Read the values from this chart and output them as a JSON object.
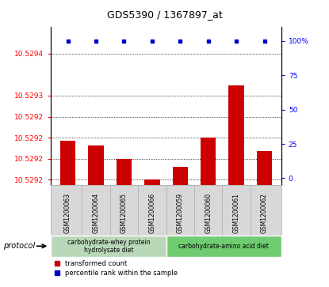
{
  "title": "GDS5390 / 1367897_at",
  "samples": [
    "GSM1200063",
    "GSM1200064",
    "GSM1200065",
    "GSM1200066",
    "GSM1200059",
    "GSM1200060",
    "GSM1200061",
    "GSM1200062"
  ],
  "red_values": [
    10.529235,
    10.529225,
    10.5292,
    10.52916,
    10.529185,
    10.52924,
    10.52934,
    10.529215
  ],
  "blue_values": [
    100,
    100,
    100,
    100,
    100,
    100,
    100,
    100
  ],
  "y_min": 10.52915,
  "y_max": 10.52945,
  "y_tick_vals": [
    10.52916,
    10.5292,
    10.52924,
    10.52928,
    10.52932,
    10.5294
  ],
  "y_tick_labels": [
    "10.5292",
    "10.5292",
    "10.5292",
    "10.5292",
    "10.5293",
    "10.5294"
  ],
  "y2_ticks": [
    0,
    25,
    50,
    75,
    100
  ],
  "group1_label": "carbohydrate-whey protein\nhydrolysate diet",
  "group2_label": "carbohydrate-amino acid diet",
  "group1_color": "#b8d8b8",
  "group2_color": "#70cc70",
  "bar_color": "#cc0000",
  "dot_color": "#0000cc",
  "legend_red": "transformed count",
  "legend_blue": "percentile rank within the sample",
  "protocol_label": "protocol",
  "sample_bg_color": "#d8d8d8"
}
